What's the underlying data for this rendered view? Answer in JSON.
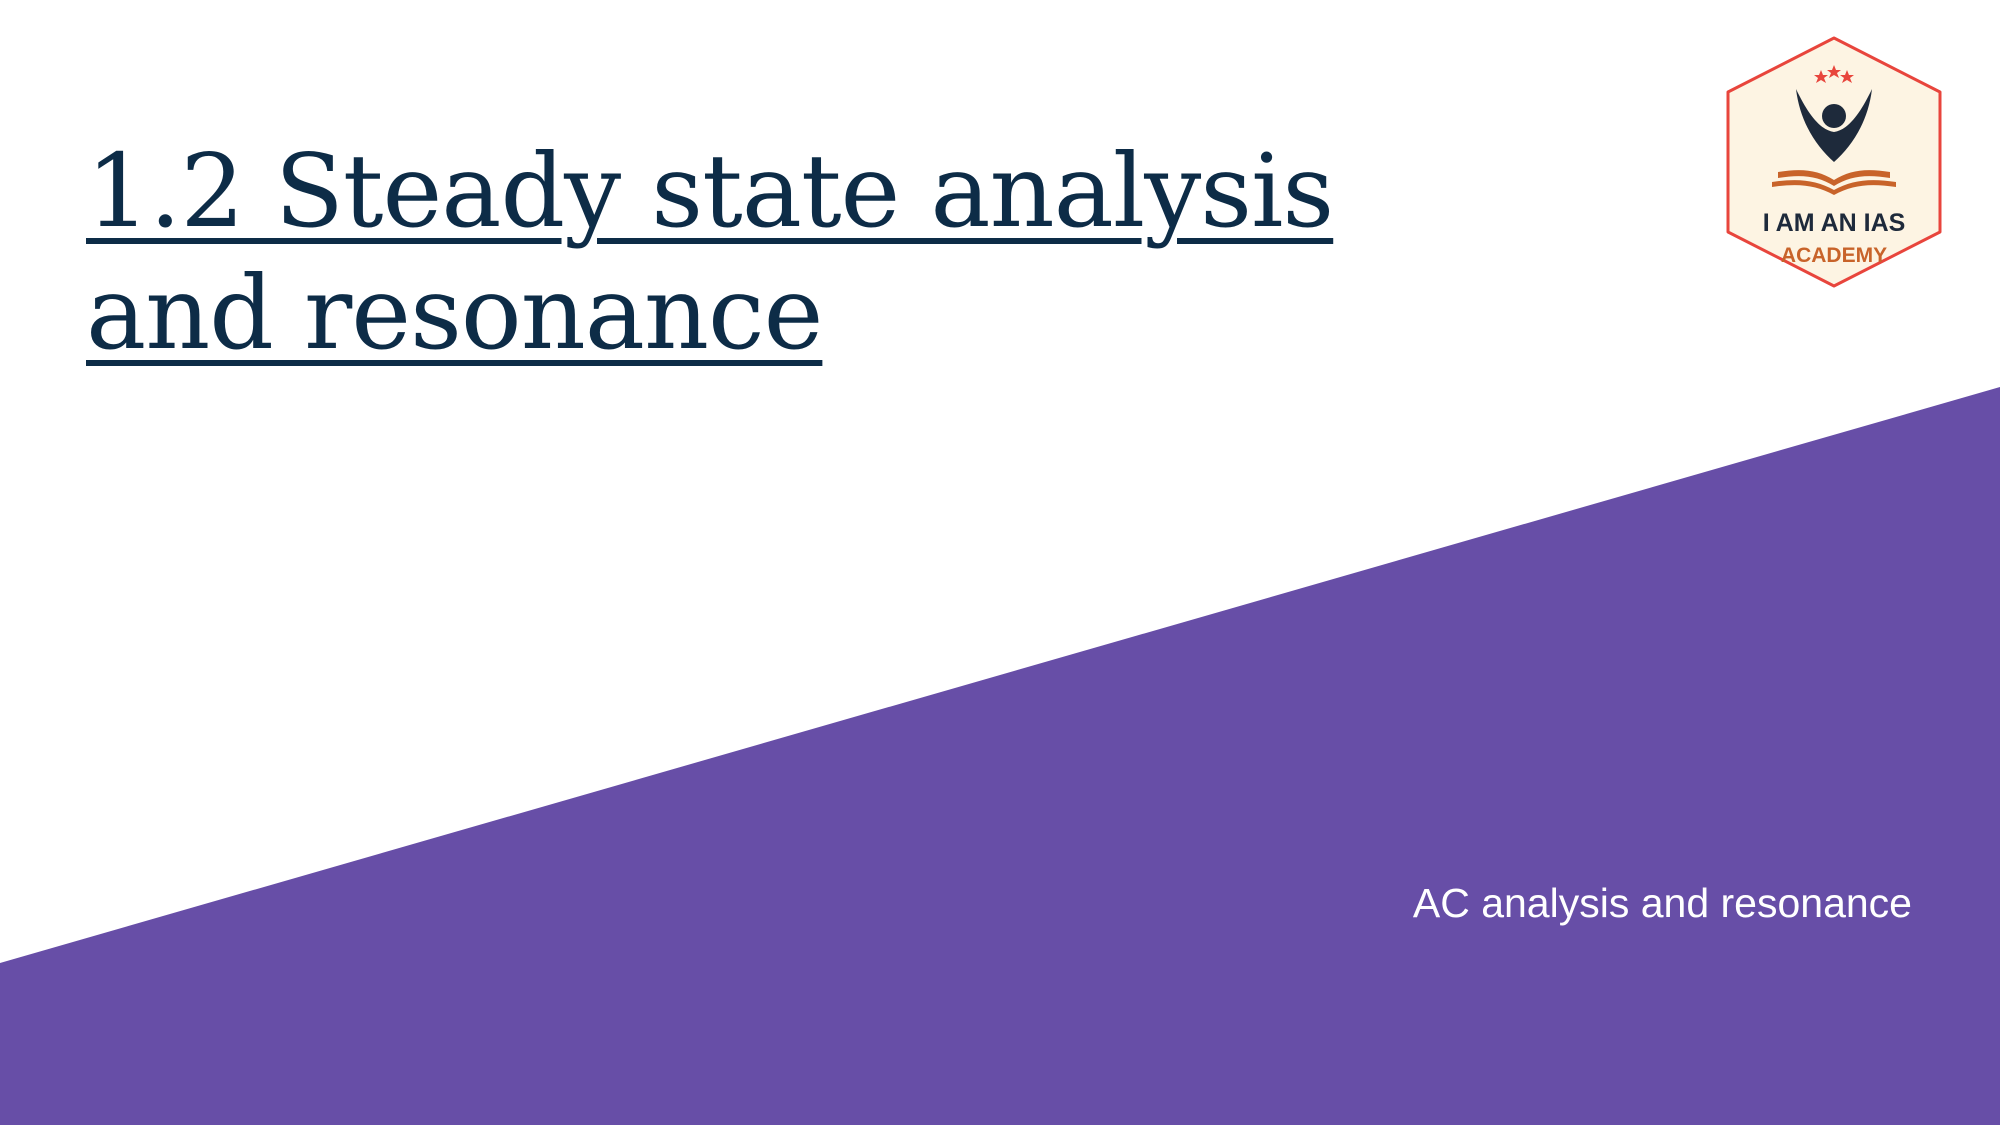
{
  "slide": {
    "title": "1.2 Steady state analysis and resonance",
    "subtitle": "AC analysis and resonance"
  },
  "logo": {
    "line1": "I AM AN IAS",
    "line2": "ACADEMY"
  },
  "colors": {
    "background": "#ffffff",
    "accent_purple": "#674ea7",
    "title_navy": "#0d2c47",
    "subtitle_text": "#ffffff",
    "logo_border": "#e8453c",
    "logo_fill": "#fdf4e3",
    "logo_navy": "#1e2a3b",
    "logo_orange": "#c8632a"
  }
}
